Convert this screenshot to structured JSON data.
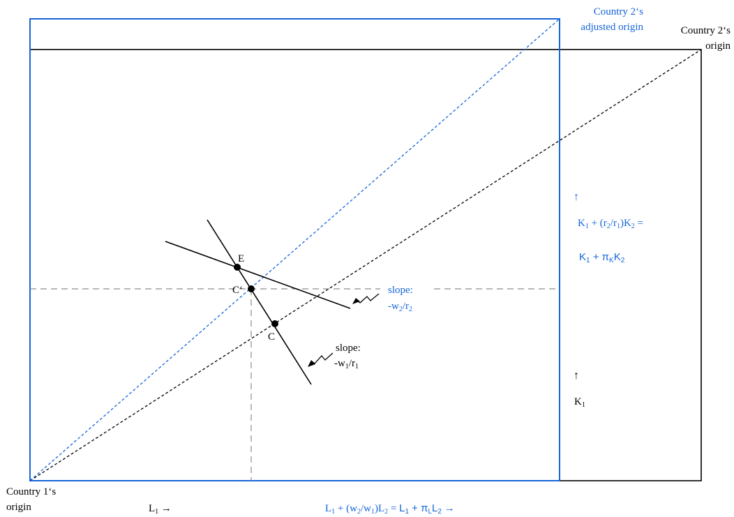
{
  "colors": {
    "black": "#000000",
    "blue": "#1565d8",
    "gray": "#8c8c8c"
  },
  "labels": {
    "country1_origin_line1": "Country 1‘s",
    "country1_origin_line2": "origin",
    "country2_origin_line1": "Country 2‘s",
    "country2_origin_line2": "origin",
    "country2_adjusted_line1": "Country 2‘s",
    "country2_adjusted_line2": "adjusted origin",
    "point_e": "E",
    "point_c_prime": "C‘",
    "point_c": "C",
    "slope_black_line1": "slope:",
    "slope_black_line2": "-w",
    "slope_black_sub1": "1",
    "slope_black_mid": "/r",
    "slope_black_sub2": "1",
    "slope_blue_line1": "slope:",
    "slope_blue_line2": "-w",
    "slope_blue_sub1": "2",
    "slope_blue_mid": "/r",
    "slope_blue_sub2": "2",
    "arrow_up": "↑",
    "k1_main": "K",
    "k1_sub": "1",
    "keff_a": "K",
    "keff_a_sub": "1",
    "keff_b": " + (r",
    "keff_b_sub": "2",
    "keff_c": "/r",
    "keff_c_sub": "1",
    "keff_d": ")K",
    "keff_d_sub": "2",
    "keff_e": " =",
    "kpi_a": "K",
    "kpi_a_sub": "1",
    "kpi_b": " + π",
    "kpi_b_sub": "K",
    "kpi_c": "K",
    "kpi_c_sub": "2",
    "l1_main": "L",
    "l1_sub": "1",
    "arrow_right": " →",
    "leff_a": "L",
    "leff_a_sub": "1",
    "leff_b": " + (w",
    "leff_b_sub": "2",
    "leff_c": "/w",
    "leff_c_sub": "1",
    "leff_d": ")L",
    "leff_d_sub": "2",
    "leff_e": " = ",
    "leff_f": "L",
    "leff_f_sub": "1",
    "leff_g": " + π",
    "leff_g_sub": "L",
    "leff_h": "L",
    "leff_h_sub": "2",
    "leff_i": "  →"
  }
}
